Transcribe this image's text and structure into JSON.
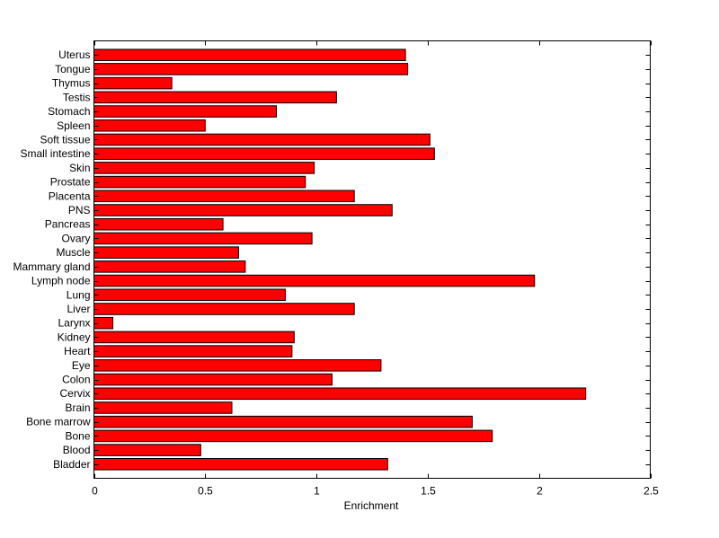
{
  "chart_data": {
    "type": "bar",
    "orientation": "horizontal",
    "title": "",
    "xlabel": "Enrichment",
    "ylabel": "",
    "xlim": [
      0,
      2.5
    ],
    "xticks": [
      0,
      0.5,
      1,
      1.5,
      2,
      2.5
    ],
    "xtick_labels": [
      "0",
      "0.5",
      "1",
      "1.5",
      "2",
      "2.5"
    ],
    "grid": false,
    "bar_color": "#ff0000",
    "categories": [
      "Bladder",
      "Blood",
      "Bone",
      "Bone marrow",
      "Brain",
      "Cervix",
      "Colon",
      "Eye",
      "Heart",
      "Kidney",
      "Larynx",
      "Liver",
      "Lung",
      "Lymph node",
      "Mammary gland",
      "Muscle",
      "Ovary",
      "Pancreas",
      "PNS",
      "Placenta",
      "Prostate",
      "Skin",
      "Small intestine",
      "Soft tissue",
      "Spleen",
      "Stomach",
      "Testis",
      "Thymus",
      "Tongue",
      "Uterus"
    ],
    "values": [
      1.32,
      0.48,
      1.79,
      1.7,
      0.62,
      2.21,
      1.07,
      1.29,
      0.89,
      0.9,
      0.085,
      1.17,
      0.86,
      1.98,
      0.68,
      0.65,
      0.98,
      0.58,
      1.34,
      1.17,
      0.95,
      0.99,
      1.53,
      1.51,
      0.5,
      0.82,
      1.09,
      0.35,
      1.41,
      1.4
    ]
  }
}
